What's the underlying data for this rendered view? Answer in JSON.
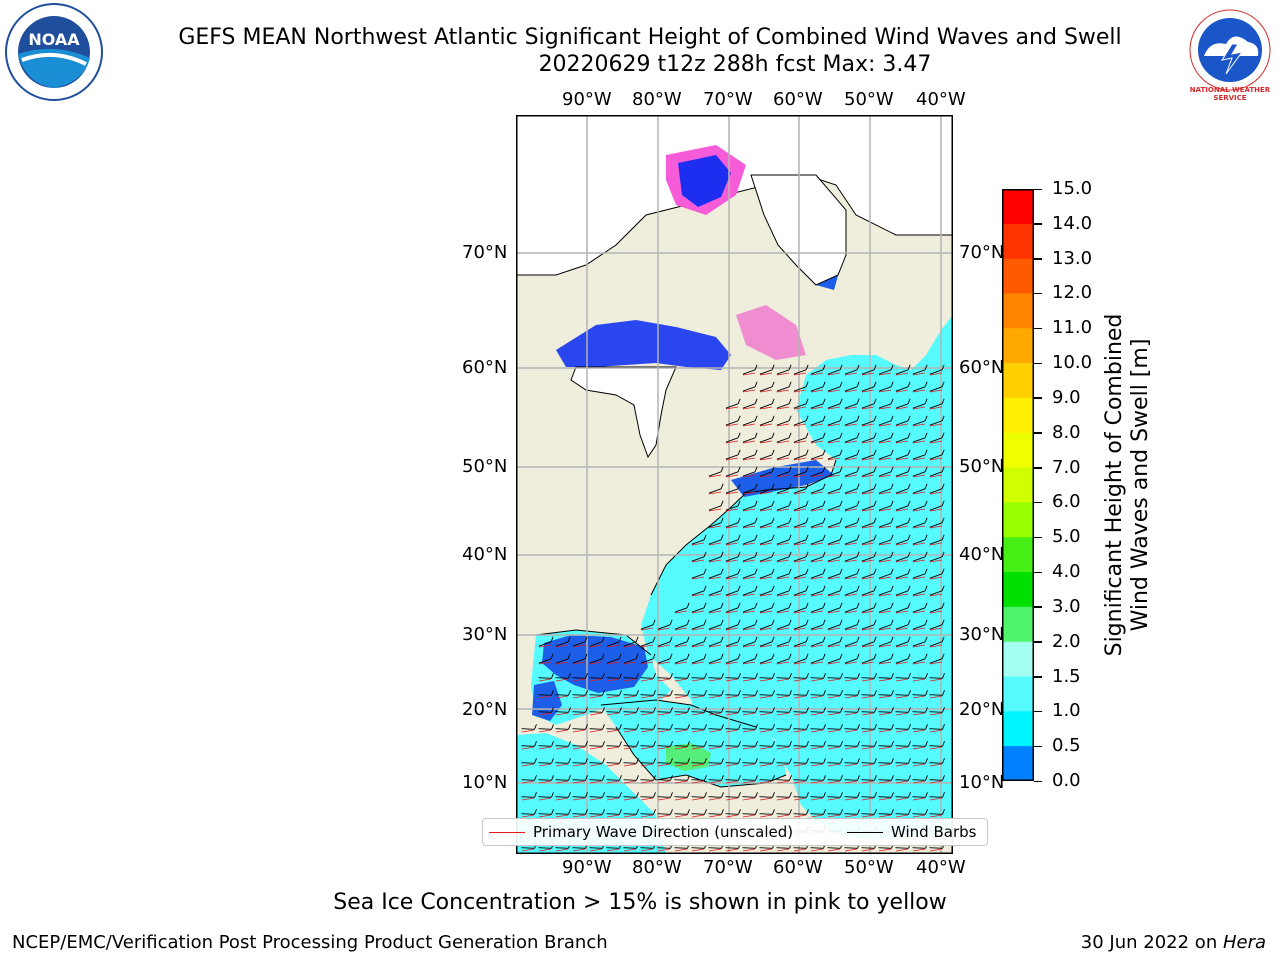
{
  "header": {
    "title_line1": "GEFS MEAN Northwest Atlantic Significant Height of Combined Wind Waves and Swell",
    "title_line2": "20220629 t12z 288h fcst   Max: 3.47"
  },
  "logos": {
    "left": {
      "text": "NOAA",
      "color": "#1f4e9c"
    },
    "right": {
      "text": "NATIONAL WEATHER SERVICE",
      "color": "#d62a2a"
    }
  },
  "map": {
    "lon_ticks": [
      "90°W",
      "80°W",
      "70°W",
      "60°W",
      "50°W",
      "40°W"
    ],
    "lat_ticks": [
      "70°N",
      "60°N",
      "50°N",
      "40°N",
      "30°N",
      "20°N",
      "10°N"
    ],
    "colors": {
      "land": "#efeddc",
      "ocean": "#55fbff",
      "sea_ice": "#f65cd7",
      "grid": "#b4b4b4"
    },
    "legend": {
      "primary_wave_label": "Primary Wave Direction (unscaled)",
      "primary_wave_color": "#e41a1c",
      "wind_barbs_label": "Wind Barbs",
      "wind_barbs_color": "#000000"
    }
  },
  "colorbar": {
    "title_line1": "Significant Height of Combined",
    "title_line2": "Wind Waves and Swell [m]",
    "labels": [
      "15.0",
      "14.0",
      "13.0",
      "12.0",
      "11.0",
      "10.0",
      "9.0",
      "8.0",
      "7.0",
      "6.0",
      "5.0",
      "4.0",
      "3.0",
      "2.0",
      "1.5",
      "1.0",
      "0.5",
      "0.0"
    ],
    "colors": [
      "#ff0000",
      "#ff3300",
      "#ff5a00",
      "#ff8400",
      "#ffa800",
      "#ffd000",
      "#ffef00",
      "#f0ff00",
      "#cfff00",
      "#98ff00",
      "#47f014",
      "#00e000",
      "#50f46c",
      "#a5fff0",
      "#55fbff",
      "#00f4ff",
      "#0080ff",
      "#0010ff"
    ]
  },
  "footer": {
    "note": "Sea Ice Concentration > 15% is shown in pink to yellow",
    "left": "NCEP/EMC/Verification Post Processing Product Generation Branch",
    "right_date": "30 Jun 2022 on ",
    "right_host": "Hera"
  }
}
